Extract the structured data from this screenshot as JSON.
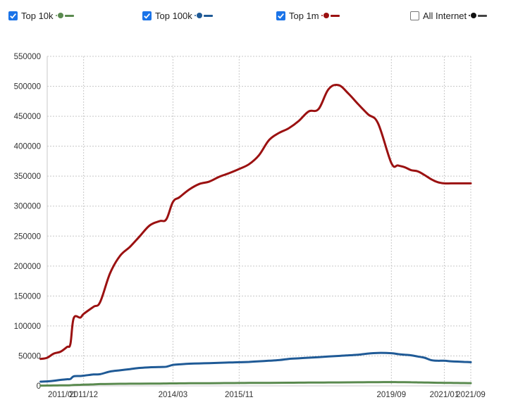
{
  "legend": [
    {
      "label": "Top 10k",
      "checked": true,
      "color": "#5a8a4f"
    },
    {
      "label": "Top 100k",
      "checked": true,
      "color": "#1f5a96"
    },
    {
      "label": "Top 1m",
      "checked": true,
      "color": "#9b1111"
    },
    {
      "label": "All Internet",
      "checked": false,
      "color": "#111111"
    }
  ],
  "chart_data": {
    "type": "line",
    "title": "",
    "xlabel": "",
    "ylabel": "",
    "x_ticks": [
      "2011/01",
      "2011/12",
      "2014/03",
      "2015/11",
      "2019/09",
      "2021/01",
      "2021/09"
    ],
    "y_ticks": [
      0,
      50000,
      100000,
      150000,
      200000,
      250000,
      300000,
      350000,
      400000,
      450000,
      500000,
      550000
    ],
    "ylim": [
      0,
      550000
    ],
    "grid": true,
    "legend_position": "top",
    "x": [
      "2010/11",
      "2011/01",
      "2011/03",
      "2011/05",
      "2011/07",
      "2011/08",
      "2011/09",
      "2011/11",
      "2011/12",
      "2012/03",
      "2012/05",
      "2012/08",
      "2012/11",
      "2013/02",
      "2013/05",
      "2013/08",
      "2013/11",
      "2014/01",
      "2014/03",
      "2014/05",
      "2014/08",
      "2014/11",
      "2015/02",
      "2015/05",
      "2015/08",
      "2015/11",
      "2016/02",
      "2016/05",
      "2016/08",
      "2016/11",
      "2017/02",
      "2017/05",
      "2017/08",
      "2017/11",
      "2018/02",
      "2018/05",
      "2018/08",
      "2018/11",
      "2019/02",
      "2019/05",
      "2019/09",
      "2019/11",
      "2020/01",
      "2020/03",
      "2020/05",
      "2020/07",
      "2020/09",
      "2020/11",
      "2021/01",
      "2021/03",
      "2021/05",
      "2021/07",
      "2021/09"
    ],
    "series": [
      {
        "name": "Top 10k",
        "color": "#5a8a4f",
        "values": [
          500,
          600,
          700,
          800,
          900,
          1000,
          1500,
          1800,
          2000,
          2500,
          3000,
          3200,
          3500,
          3600,
          3700,
          3800,
          3900,
          4000,
          4100,
          4200,
          4300,
          4400,
          4500,
          4600,
          4700,
          4800,
          4900,
          5000,
          5100,
          5200,
          5300,
          5400,
          5500,
          5600,
          5700,
          5800,
          5900,
          6000,
          6100,
          6200,
          6300,
          6200,
          6100,
          6000,
          5800,
          5600,
          5400,
          5200,
          5000,
          4900,
          4800,
          4700,
          4600
        ]
      },
      {
        "name": "Top 100k",
        "color": "#1f5a96",
        "values": [
          7000,
          7500,
          8500,
          10000,
          11000,
          11500,
          16000,
          16500,
          17000,
          19000,
          19500,
          24000,
          26000,
          28000,
          30000,
          31000,
          31500,
          32000,
          35000,
          36000,
          37000,
          37500,
          38000,
          38500,
          39000,
          39500,
          40000,
          41000,
          42000,
          43000,
          45000,
          46000,
          47000,
          48000,
          49000,
          50000,
          51000,
          52000,
          54000,
          55000,
          54500,
          53000,
          52000,
          51000,
          49000,
          47000,
          43000,
          42000,
          42000,
          41000,
          40500,
          40000,
          39500
        ]
      },
      {
        "name": "Top 1m",
        "color": "#9b1111",
        "values": [
          45000,
          47000,
          54000,
          57000,
          65000,
          70000,
          113000,
          114000,
          120000,
          132000,
          140000,
          188000,
          217000,
          232000,
          250000,
          268000,
          275000,
          278000,
          307000,
          315000,
          328000,
          337000,
          341000,
          349000,
          355000,
          362000,
          370000,
          385000,
          410000,
          422000,
          430000,
          442000,
          458000,
          462000,
          495000,
          502000,
          488000,
          470000,
          453000,
          438000,
          372000,
          368000,
          365000,
          360000,
          358000,
          352000,
          345000,
          340000,
          338000,
          338000,
          338000,
          338000,
          338000
        ]
      }
    ]
  }
}
